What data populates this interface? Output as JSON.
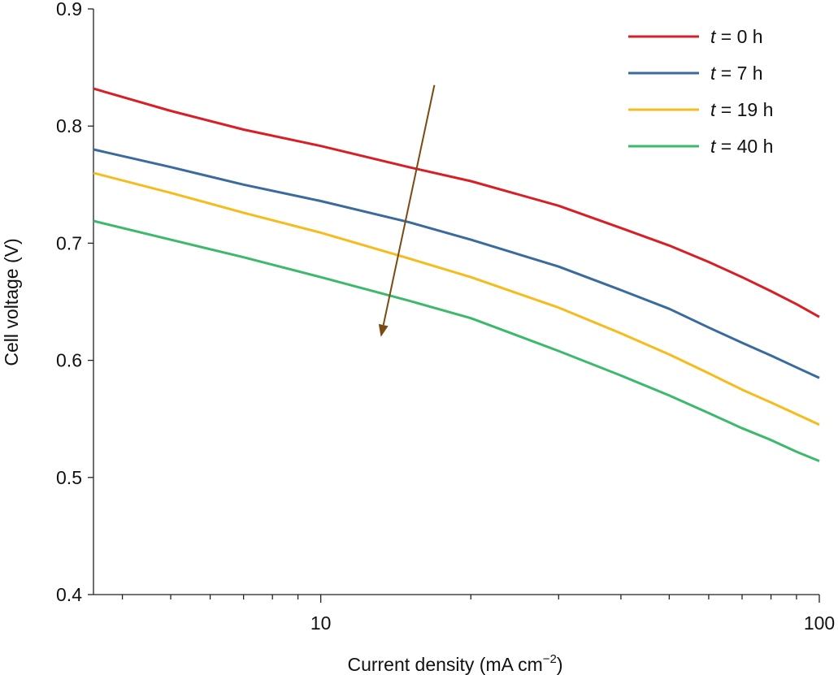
{
  "chart_data": {
    "type": "line",
    "xlabel": "Current density (mA cm",
    "xlabel_sup": "−2",
    "xlabel_end": ")",
    "ylabel": "Cell voltage (V)",
    "xscale": "log",
    "xlim": [
      3.5,
      100
    ],
    "ylim": [
      0.4,
      0.9
    ],
    "yticks": [
      "0.4",
      "0.5",
      "0.6",
      "0.7",
      "0.8",
      "0.9"
    ],
    "xticks": [
      "10",
      "100"
    ],
    "grid": false,
    "legend": "top-right",
    "arrow": {
      "from": [
        16.9,
        0.835
      ],
      "to": [
        13.2,
        0.62
      ],
      "color": "#7a4a10"
    },
    "series": [
      {
        "name": "t = 0 h",
        "label_var": "t",
        "label_rest": " = 0 h",
        "color": "#d81f26",
        "x": [
          3.5,
          5,
          7,
          10,
          15,
          20,
          30,
          40,
          50,
          60,
          70,
          80,
          90,
          100
        ],
        "y": [
          0.832,
          0.813,
          0.797,
          0.783,
          0.765,
          0.753,
          0.732,
          0.713,
          0.698,
          0.684,
          0.671,
          0.659,
          0.648,
          0.637
        ]
      },
      {
        "name": "t = 7 h",
        "label_var": "t",
        "label_rest": " = 7 h",
        "color": "#3a6b9e",
        "x": [
          3.5,
          5,
          7,
          10,
          15,
          20,
          30,
          40,
          50,
          60,
          70,
          80,
          90,
          100
        ],
        "y": [
          0.78,
          0.765,
          0.75,
          0.736,
          0.718,
          0.703,
          0.68,
          0.66,
          0.644,
          0.628,
          0.615,
          0.604,
          0.594,
          0.585
        ]
      },
      {
        "name": "t = 19 h",
        "label_var": "t",
        "label_rest": " = 19 h",
        "color": "#f6bb1c",
        "x": [
          3.5,
          5,
          7,
          10,
          15,
          20,
          30,
          40,
          50,
          60,
          70,
          80,
          90,
          100
        ],
        "y": [
          0.76,
          0.743,
          0.726,
          0.709,
          0.687,
          0.671,
          0.645,
          0.623,
          0.605,
          0.589,
          0.575,
          0.564,
          0.554,
          0.545
        ]
      },
      {
        "name": "t = 40 h",
        "label_var": "t",
        "label_rest": " = 40 h",
        "color": "#3cb96b",
        "x": [
          3.5,
          5,
          7,
          10,
          15,
          20,
          30,
          40,
          50,
          60,
          70,
          80,
          90,
          100
        ],
        "y": [
          0.719,
          0.703,
          0.688,
          0.671,
          0.651,
          0.636,
          0.608,
          0.587,
          0.57,
          0.555,
          0.542,
          0.532,
          0.522,
          0.514
        ]
      }
    ]
  }
}
